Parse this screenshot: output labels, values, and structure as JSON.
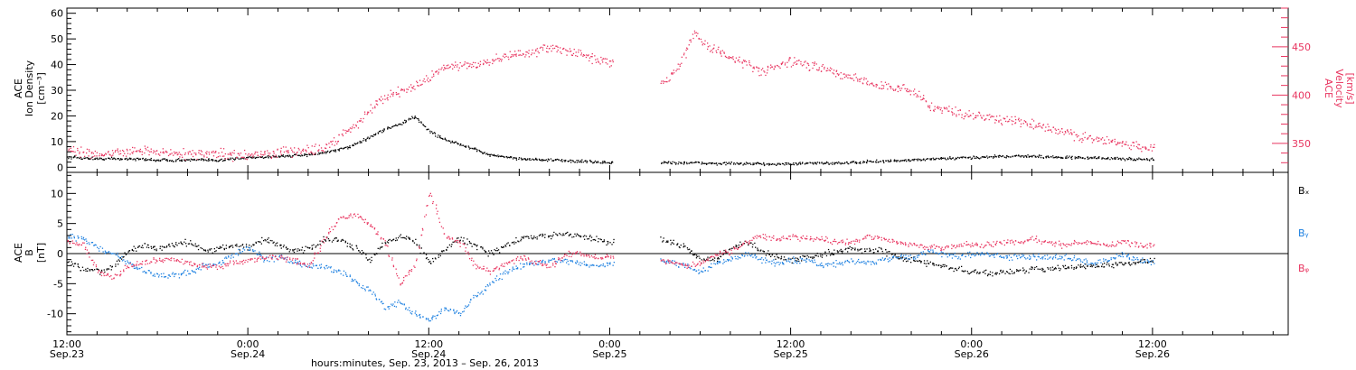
{
  "colors": {
    "black": "#000000",
    "pink": "#e8345f",
    "blue": "#1b7fe0",
    "axis": "#000000"
  },
  "x_axis": {
    "ticks": [
      {
        "value": 0,
        "time": "12:00",
        "date": "Sep.23"
      },
      {
        "value": 12,
        "time": "0:00",
        "date": "Sep.24"
      },
      {
        "value": 24,
        "time": "12:00",
        "date": "Sep.24"
      },
      {
        "value": 36,
        "time": "0:00",
        "date": "Sep.25"
      },
      {
        "value": 48,
        "time": "12:00",
        "date": "Sep.25"
      },
      {
        "value": 60,
        "time": "0:00",
        "date": "Sep.26"
      },
      {
        "value": 72,
        "time": "12:00",
        "date": "Sep.26"
      }
    ],
    "caption": "hours:minutes, Sep. 23, 2013 – Sep. 26, 2013"
  },
  "chart_data": [
    {
      "type": "scatter",
      "panel": "top",
      "ylabel_lines": [
        "ACE",
        "Ion Density",
        "[cm⁻³]"
      ],
      "ylim": [
        -2,
        62
      ],
      "yticks": [
        0,
        10,
        20,
        30,
        40,
        50,
        60
      ],
      "right_axis": {
        "ylabel_lines": [
          "ACE",
          "Velocity",
          "[km/s]"
        ],
        "ylim": [
          320,
          490
        ],
        "yticks": [
          350,
          400,
          450
        ]
      },
      "series": [
        {
          "color": "black",
          "axis": "left",
          "x": [
            0,
            2,
            4,
            6,
            8,
            10,
            12,
            14,
            16,
            17,
            18,
            19,
            20,
            21,
            22,
            23,
            24,
            25,
            26,
            27,
            28,
            30,
            32,
            34,
            36,
            39.5,
            42,
            44,
            46,
            48,
            50,
            52,
            54,
            56,
            58,
            60,
            62,
            64,
            66,
            68,
            70,
            72
          ],
          "y": [
            4,
            3.5,
            3.5,
            3,
            3,
            3,
            4,
            4.5,
            5,
            6,
            7,
            9,
            12,
            15,
            17,
            20,
            14,
            11,
            9,
            7,
            5,
            3.5,
            3,
            2.5,
            2,
            2,
            1.8,
            1.6,
            1.5,
            1.5,
            1.8,
            2,
            2.5,
            3,
            3.5,
            4,
            4.5,
            4.5,
            4,
            3.8,
            3.5,
            3.2
          ]
        },
        {
          "color": "pink",
          "axis": "right",
          "x": [
            0,
            1,
            3,
            5,
            7,
            9,
            11,
            13,
            15,
            17,
            18,
            19,
            20,
            21,
            22,
            23,
            24,
            25,
            26,
            27,
            28,
            29,
            30,
            31,
            32,
            33,
            34,
            35,
            36,
            39.5,
            40.5,
            41.5,
            42.5,
            44,
            46,
            48,
            50,
            52,
            54,
            56,
            57,
            58,
            60,
            62,
            64,
            66,
            68,
            70,
            72
          ],
          "y": [
            345,
            340,
            340,
            343,
            340,
            340,
            338,
            340,
            342,
            345,
            358,
            368,
            385,
            398,
            405,
            410,
            418,
            430,
            432,
            432,
            435,
            440,
            443,
            445,
            450,
            447,
            442,
            438,
            435,
            415,
            430,
            465,
            450,
            440,
            425,
            435,
            428,
            418,
            410,
            405,
            392,
            385,
            380,
            375,
            370,
            362,
            355,
            350,
            345
          ]
        }
      ]
    },
    {
      "type": "scatter",
      "panel": "bottom",
      "ylabel_lines": [
        "ACE",
        "B",
        "[nT]"
      ],
      "ylim": [
        -13.5,
        13.5
      ],
      "yticks": [
        -10,
        -5,
        0,
        5,
        10
      ],
      "zero_line": true,
      "legend": {
        "placement": "right",
        "entries": [
          "Bₓ",
          "Bᵧ",
          "Bᵩ"
        ]
      },
      "series": [
        {
          "color": "black",
          "x": [
            0,
            1,
            2,
            3,
            4,
            5,
            6,
            7,
            8,
            9,
            10,
            11,
            12,
            13,
            14,
            15,
            16,
            17,
            18,
            19,
            20,
            21,
            22,
            23,
            24,
            25,
            26,
            27,
            28,
            29,
            30,
            31,
            32,
            33,
            34,
            35,
            36,
            39.5,
            41,
            42,
            43,
            44,
            45,
            46,
            47,
            48,
            49,
            50,
            51,
            52,
            53,
            54,
            55,
            56,
            57,
            58,
            59,
            60,
            61,
            62,
            63,
            64,
            65,
            66,
            67,
            68,
            69,
            70,
            71,
            72
          ],
          "y": [
            -1.5,
            -2.5,
            -3,
            -2,
            0.5,
            1.5,
            1,
            1.5,
            2,
            0.5,
            1,
            1.5,
            1,
            2.5,
            1.5,
            0.5,
            1,
            2.5,
            2.5,
            1,
            -1,
            2,
            3,
            2,
            -1.5,
            1,
            2.5,
            1.5,
            0,
            1.5,
            2.5,
            3,
            3,
            3.5,
            3,
            2.5,
            2,
            2.5,
            1,
            -1,
            -1,
            1,
            2,
            0.5,
            -0.5,
            -1,
            -0.5,
            0,
            0.5,
            1,
            0.5,
            0.5,
            -0.5,
            -1,
            -1.5,
            -2,
            -2.5,
            -3,
            -3.2,
            -3,
            -2.8,
            -2.5,
            -2.5,
            -2.2,
            -2,
            -2,
            -1.8,
            -1.5,
            -1.2,
            -1
          ]
        },
        {
          "color": "blue",
          "x": [
            0,
            1,
            2,
            3,
            4,
            5,
            6,
            7,
            8,
            9,
            10,
            11,
            12,
            13,
            14,
            15,
            16,
            17,
            18,
            19,
            20,
            21,
            22,
            23,
            24,
            25,
            26,
            27,
            28,
            29,
            30,
            31,
            32,
            33,
            34,
            35,
            36,
            39.5,
            41,
            42,
            43,
            44,
            45,
            46,
            47,
            48,
            49,
            50,
            51,
            52,
            53,
            54,
            55,
            56,
            57,
            58,
            59,
            60,
            61,
            62,
            63,
            64,
            65,
            66,
            67,
            68,
            69,
            70,
            71,
            72
          ],
          "y": [
            3,
            2.5,
            1,
            0,
            -1.5,
            -3,
            -3.5,
            -3.5,
            -3,
            -2,
            -1.5,
            0,
            1,
            -1,
            -0.5,
            -1.5,
            -2,
            -2,
            -3,
            -4.5,
            -6,
            -9,
            -8,
            -10,
            -11,
            -9,
            -10,
            -7,
            -5,
            -3,
            -2,
            -1.5,
            -1,
            -1,
            -1.5,
            -2,
            -1.5,
            -1,
            -2,
            -3,
            -1.5,
            -1,
            0,
            -1,
            -1.5,
            -1,
            -1,
            -2,
            -1.5,
            -1,
            -1.5,
            -1,
            -0.5,
            -0.5,
            0.5,
            0,
            -0.5,
            0,
            0,
            -0.5,
            -0.5,
            -0.5,
            -0.5,
            -0.5,
            -1,
            -1.5,
            -1,
            0,
            -1,
            -1.5
          ]
        },
        {
          "color": "pink",
          "x": [
            0,
            1,
            2,
            3,
            4,
            5,
            6,
            7,
            8,
            9,
            10,
            11,
            12,
            13,
            14,
            15,
            16,
            17,
            18,
            19,
            20,
            21,
            22,
            23,
            24,
            25,
            26,
            27,
            28,
            29,
            30,
            31,
            32,
            33,
            34,
            35,
            36,
            39.5,
            41,
            42,
            43,
            44,
            45,
            46,
            47,
            48,
            49,
            50,
            51,
            52,
            53,
            54,
            55,
            56,
            57,
            58,
            59,
            60,
            61,
            62,
            63,
            64,
            65,
            66,
            67,
            68,
            69,
            70,
            71,
            72
          ],
          "y": [
            2,
            1.5,
            -3,
            -4,
            -2,
            -1.5,
            -1,
            -1,
            -1.5,
            -2,
            -2,
            -1.5,
            -1,
            -0.5,
            -0.5,
            -1,
            -2,
            2.5,
            6,
            6.5,
            5,
            2,
            -5,
            -2,
            10.5,
            3,
            2,
            -2,
            -3,
            -1.5,
            -0.5,
            -1.5,
            -2,
            0,
            0,
            -0.5,
            -0.5,
            -1,
            -2,
            -1.5,
            0,
            0.5,
            2,
            3,
            2.5,
            3,
            2.5,
            2.5,
            2,
            2,
            3,
            2.5,
            2,
            1.5,
            1,
            1,
            1.5,
            1.5,
            1.5,
            2,
            2,
            2.5,
            2,
            1.5,
            2,
            2,
            1.5,
            2,
            1.5,
            1.5
          ]
        }
      ]
    }
  ]
}
